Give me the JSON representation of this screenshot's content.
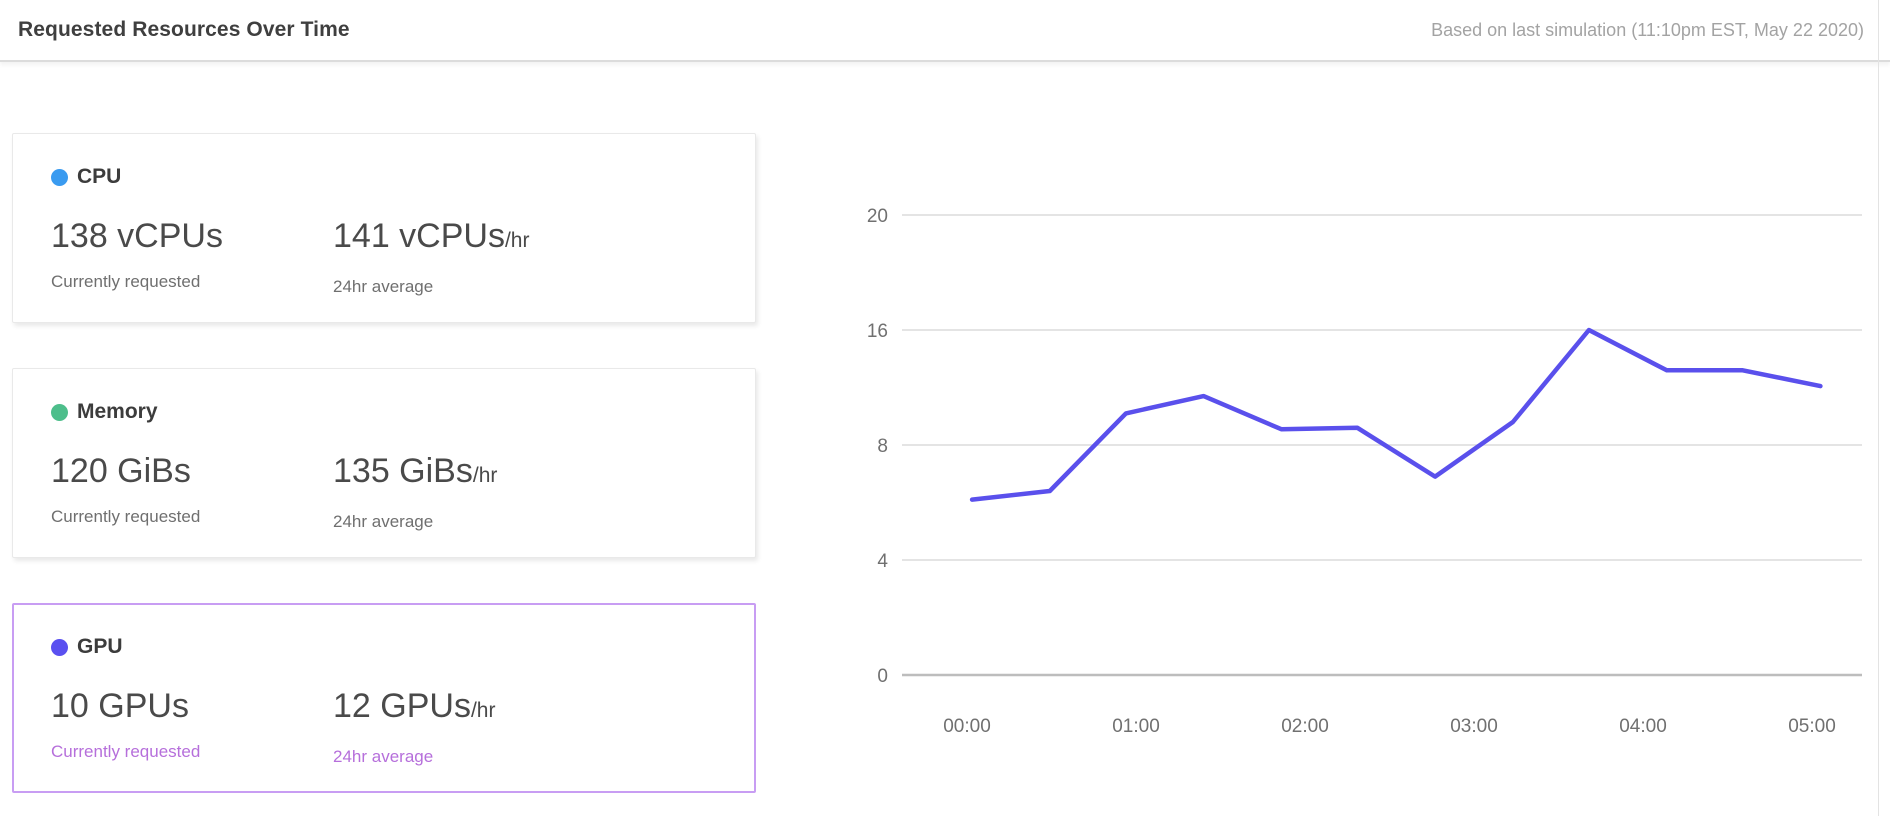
{
  "header": {
    "title": "Requested Resources Over Time",
    "subtitle": "Based on last simulation (11:10pm EST, May 22 2020)"
  },
  "cards": [
    {
      "id": "cpu",
      "label": "CPU",
      "dot_color": "#3a9bf0",
      "current_value": "138 vCPUs",
      "current_caption": "Currently requested",
      "average_value": "141 vCPUs",
      "average_suffix": "/hr",
      "average_caption": "24hr average",
      "selected": false
    },
    {
      "id": "memory",
      "label": "Memory",
      "dot_color": "#4dbe8b",
      "current_value": "120 GiBs",
      "current_caption": "Currently requested",
      "average_value": "135 GiBs",
      "average_suffix": "/hr",
      "average_caption": "24hr average",
      "selected": false
    },
    {
      "id": "gpu",
      "label": "GPU",
      "dot_color": "#5a50f0",
      "current_value": "10 GPUs",
      "current_caption": "Currently requested",
      "average_value": "12 GPUs",
      "average_suffix": "/hr",
      "average_caption": "24hr average",
      "selected": true
    }
  ],
  "colors": {
    "selected_card_border": "#c89df3",
    "selected_caption_text": "#b66fdb",
    "chart_line": "#5a50ec",
    "gridline": "#dcdcdc",
    "axis_line": "#bdbdbd",
    "axis_label": "#707070"
  },
  "chart_data": {
    "type": "line",
    "title": "",
    "xlabel": "",
    "ylabel": "",
    "x_ticks": [
      "00:00",
      "01:00",
      "02:00",
      "03:00",
      "04:00",
      "05:00"
    ],
    "y_ticks": [
      20,
      16,
      8,
      4,
      0
    ],
    "y_tick_layout": "evenly-spaced-as-displayed",
    "grid": true,
    "legend": "none",
    "series": [
      {
        "name": "GPU",
        "color": "#5a50ec",
        "x_hours": [
          0.03,
          0.49,
          0.94,
          1.4,
          1.86,
          2.31,
          2.77,
          3.23,
          3.68,
          4.14,
          4.59,
          5.05
        ],
        "values": [
          6.1,
          6.4,
          10.2,
          11.4,
          9.1,
          9.2,
          6.9,
          9.6,
          16,
          13.2,
          13.2,
          12.1
        ]
      }
    ]
  }
}
